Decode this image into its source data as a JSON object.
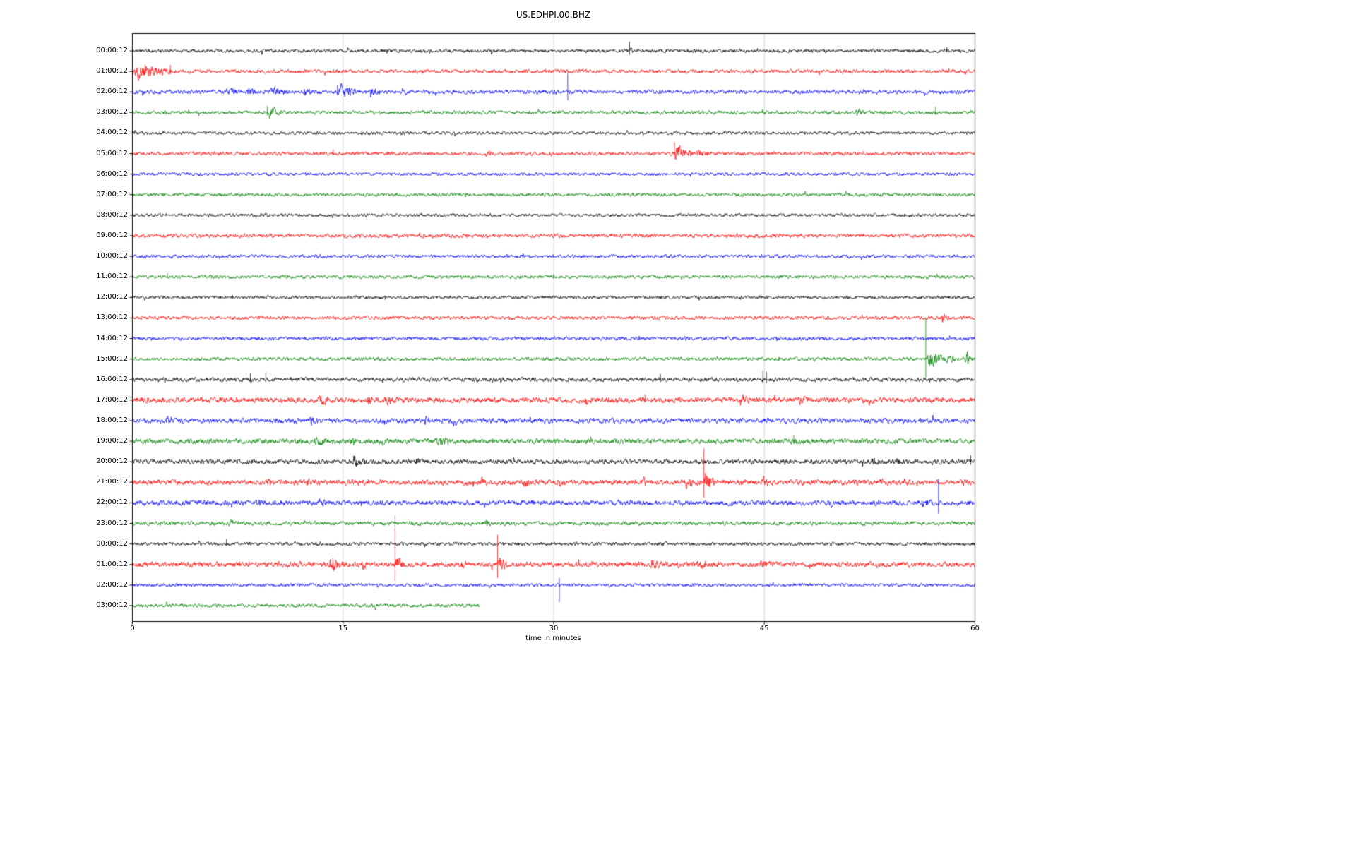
{
  "chart_data": {
    "type": "line",
    "subtype": "helicorder-dayplot",
    "title": "US.EDHPI.00.BHZ",
    "xlabel": "time in minutes",
    "xlim": [
      0,
      60
    ],
    "xticks": [
      0,
      15,
      30,
      45,
      60
    ],
    "grid_x": [
      15,
      30,
      45
    ],
    "grid_on": true,
    "legend": "none",
    "trace_color_cycle": [
      "#000000",
      "#ff0000",
      "#0000ff",
      "#008000"
    ],
    "rows": [
      {
        "label": "00:00:12",
        "color": "#000000",
        "noise": 1.0,
        "end": 60,
        "events": [
          {
            "t": 35.4,
            "a": 4,
            "d": 0.25,
            "s": 13
          },
          {
            "t": 58.0,
            "a": 2,
            "d": 0.15,
            "s": 5
          }
        ]
      },
      {
        "label": "01:00:12",
        "color": "#ff0000",
        "noise": 1.1,
        "end": 60,
        "events": [
          {
            "t": 0,
            "a": 8,
            "d": 3.5
          },
          {
            "t": 0.9,
            "s": 10
          },
          {
            "t": 2.7,
            "s": 9
          }
        ]
      },
      {
        "label": "02:00:12",
        "color": "#0000ff",
        "noise": 1.15,
        "end": 60,
        "events": [
          {
            "t": 6.6,
            "a": 4,
            "d": 1.2
          },
          {
            "t": 8.1,
            "a": 4,
            "d": 1.0
          },
          {
            "t": 9.8,
            "a": 5,
            "d": 1.5
          },
          {
            "t": 12.2,
            "a": 4,
            "d": 0.8
          },
          {
            "t": 14.6,
            "a": 8,
            "d": 1.8,
            "s": 10
          },
          {
            "t": 16.9,
            "a": 7,
            "d": 0.9
          },
          {
            "t": 19.2,
            "a": 3,
            "d": 0.4
          },
          {
            "t": 29.9,
            "a": 4,
            "d": 0.3
          },
          {
            "t": 31.0,
            "s": 26
          }
        ]
      },
      {
        "label": "03:00:12",
        "color": "#008000",
        "noise": 1.05,
        "end": 60,
        "events": [
          {
            "t": 9.6,
            "a": 8,
            "d": 1.2,
            "s": 9
          },
          {
            "t": 51.5,
            "a": 4,
            "d": 0.8
          },
          {
            "t": 57.2,
            "s": 8
          }
        ]
      },
      {
        "label": "04:00:12",
        "color": "#000000",
        "noise": 0.95,
        "end": 60,
        "events": []
      },
      {
        "label": "05:00:12",
        "color": "#ff0000",
        "noise": 1.0,
        "end": 60,
        "events": [
          {
            "t": 14.3,
            "s": 6
          },
          {
            "t": 25.1,
            "a": 4,
            "d": 0.7
          },
          {
            "t": 38.6,
            "a": 13,
            "d": 1.4,
            "s": 16
          },
          {
            "t": 40.0,
            "a": 4,
            "d": 1.5
          }
        ]
      },
      {
        "label": "06:00:12",
        "color": "#0000ff",
        "noise": 0.95,
        "end": 60,
        "events": []
      },
      {
        "label": "07:00:12",
        "color": "#008000",
        "noise": 1.0,
        "end": 60,
        "events": []
      },
      {
        "label": "08:00:12",
        "color": "#000000",
        "noise": 0.95,
        "end": 60,
        "events": []
      },
      {
        "label": "09:00:12",
        "color": "#ff0000",
        "noise": 1.15,
        "end": 60,
        "events": []
      },
      {
        "label": "10:00:12",
        "color": "#0000ff",
        "noise": 1.0,
        "end": 60,
        "events": []
      },
      {
        "label": "11:00:12",
        "color": "#008000",
        "noise": 1.0,
        "end": 60,
        "events": [
          {
            "t": 2.5,
            "s": 5
          }
        ]
      },
      {
        "label": "12:00:12",
        "color": "#000000",
        "noise": 0.95,
        "end": 60,
        "events": []
      },
      {
        "label": "13:00:12",
        "color": "#ff0000",
        "noise": 1.05,
        "end": 60,
        "events": [
          {
            "t": 57.6,
            "a": 5,
            "d": 0.7
          }
        ]
      },
      {
        "label": "14:00:12",
        "color": "#0000ff",
        "noise": 1.0,
        "end": 60,
        "events": [
          {
            "t": 39.2,
            "a": 3,
            "d": 0.5
          }
        ]
      },
      {
        "label": "15:00:12",
        "color": "#008000",
        "noise": 1.05,
        "end": 60,
        "events": [
          {
            "t": 56.5,
            "a": 10,
            "d": 2.5,
            "s": 58
          },
          {
            "t": 59.3,
            "a": 8,
            "d": 0.7
          }
        ]
      },
      {
        "label": "16:00:12",
        "color": "#000000",
        "noise": 1.2,
        "end": 60,
        "events": [
          {
            "t": 8.4,
            "s": 9
          },
          {
            "t": 9.5,
            "s": 10
          },
          {
            "t": 37.6,
            "s": 8
          },
          {
            "t": 44.9,
            "s": 13
          },
          {
            "t": 45.15,
            "s": 11
          }
        ]
      },
      {
        "label": "17:00:12",
        "color": "#ff0000",
        "noise": 1.55,
        "end": 60,
        "events": [
          {
            "t": 7.3,
            "a": 4,
            "d": 0.5
          },
          {
            "t": 13.3,
            "a": 5,
            "d": 0.7
          },
          {
            "t": 16.7,
            "a": 6,
            "d": 0.6
          },
          {
            "t": 17.9,
            "a": 5,
            "d": 1.0
          },
          {
            "t": 32.2,
            "a": 4,
            "d": 0.9
          },
          {
            "t": 36.5,
            "s": 8
          },
          {
            "t": 43.2,
            "a": 5,
            "d": 0.9
          },
          {
            "t": 47.4,
            "a": 4,
            "d": 0.8
          },
          {
            "t": 52.4,
            "a": 4,
            "d": 0.6
          }
        ]
      },
      {
        "label": "18:00:12",
        "color": "#0000ff",
        "noise": 1.4,
        "end": 60,
        "events": [
          {
            "t": 2.3,
            "a": 4,
            "d": 0.9
          },
          {
            "t": 10.1,
            "a": 3,
            "d": 0.5
          },
          {
            "t": 12.6,
            "a": 4,
            "d": 0.8
          },
          {
            "t": 20.8,
            "a": 4,
            "d": 0.5
          },
          {
            "t": 22.8,
            "a": 4,
            "d": 0.5
          },
          {
            "t": 45.0,
            "a": 3,
            "d": 0.4
          }
        ]
      },
      {
        "label": "19:00:12",
        "color": "#008000",
        "noise": 1.45,
        "end": 60,
        "events": [
          {
            "t": 12.8,
            "a": 4,
            "d": 1.5
          },
          {
            "t": 15.5,
            "a": 4,
            "d": 0.7
          },
          {
            "t": 21.6,
            "a": 5,
            "d": 1.3
          },
          {
            "t": 47.1,
            "a": 3,
            "d": 0.4,
            "s": 9
          }
        ]
      },
      {
        "label": "20:00:12",
        "color": "#000000",
        "noise": 1.4,
        "end": 60,
        "events": [
          {
            "t": 15.6,
            "a": 6,
            "d": 1.3
          },
          {
            "t": 20.1,
            "a": 4,
            "d": 0.7
          },
          {
            "t": 46.2,
            "a": 3,
            "d": 0.5
          },
          {
            "t": 52.6,
            "a": 4,
            "d": 0.7
          },
          {
            "t": 54.4,
            "a": 3,
            "d": 0.5
          },
          {
            "t": 59.7,
            "s": 9
          }
        ]
      },
      {
        "label": "21:00:12",
        "color": "#ff0000",
        "noise": 1.5,
        "end": 60,
        "events": [
          {
            "t": 9.6,
            "a": 4,
            "d": 0.5
          },
          {
            "t": 12.4,
            "a": 3,
            "d": 0.4
          },
          {
            "t": 24.8,
            "a": 5,
            "d": 0.6
          },
          {
            "t": 27.8,
            "a": 5,
            "d": 0.7
          },
          {
            "t": 30.3,
            "a": 4,
            "d": 0.6
          },
          {
            "t": 36.2,
            "a": 5,
            "d": 0.6
          },
          {
            "t": 39.1,
            "a": 8,
            "d": 1.2
          },
          {
            "t": 40.7,
            "a": 13,
            "d": 1.0,
            "s": 48
          },
          {
            "t": 44.8,
            "a": 5,
            "d": 0.6
          },
          {
            "t": 53.2,
            "a": 3,
            "d": 0.4
          }
        ]
      },
      {
        "label": "22:00:12",
        "color": "#0000ff",
        "noise": 1.45,
        "end": 60,
        "events": [
          {
            "t": 8.8,
            "a": 4,
            "d": 0.8
          },
          {
            "t": 13.2,
            "a": 4,
            "d": 0.8
          },
          {
            "t": 49.6,
            "a": 4,
            "d": 0.6
          },
          {
            "t": 56.2,
            "a": 5,
            "d": 1.0
          },
          {
            "t": 57.4,
            "s": 34
          }
        ]
      },
      {
        "label": "23:00:12",
        "color": "#008000",
        "noise": 1.15,
        "end": 60,
        "events": [
          {
            "t": 6.8,
            "a": 4,
            "d": 0.8
          },
          {
            "t": 18.7,
            "s": 11
          },
          {
            "t": 25.1,
            "a": 4,
            "d": 0.6
          }
        ]
      },
      {
        "label": "00:00:12",
        "color": "#000000",
        "noise": 1.0,
        "end": 60,
        "events": [
          {
            "t": 6.7,
            "s": 7
          },
          {
            "t": 37.7,
            "a": 3,
            "d": 0.5
          }
        ]
      },
      {
        "label": "01:00:12",
        "color": "#ff0000",
        "noise": 1.5,
        "end": 60,
        "events": [
          {
            "t": 14.0,
            "a": 8,
            "d": 1.4
          },
          {
            "t": 16.3,
            "a": 5,
            "d": 0.6
          },
          {
            "t": 18.7,
            "a": 10,
            "d": 0.8,
            "s": 52
          },
          {
            "t": 23.4,
            "a": 4,
            "d": 0.5
          },
          {
            "t": 26.0,
            "a": 9,
            "d": 0.8,
            "s": 42
          },
          {
            "t": 36.9,
            "a": 5,
            "d": 0.9
          },
          {
            "t": 40.2,
            "a": 6,
            "d": 0.9
          },
          {
            "t": 44.7,
            "a": 5,
            "d": 0.7
          }
        ]
      },
      {
        "label": "02:00:12",
        "color": "#0000ff",
        "noise": 0.95,
        "end": 60,
        "events": [
          {
            "t": 30.4,
            "s": 10,
            "sd": 24
          }
        ]
      },
      {
        "label": "03:00:12",
        "color": "#008000",
        "noise": 1.05,
        "end": 24.7,
        "events": []
      }
    ]
  }
}
